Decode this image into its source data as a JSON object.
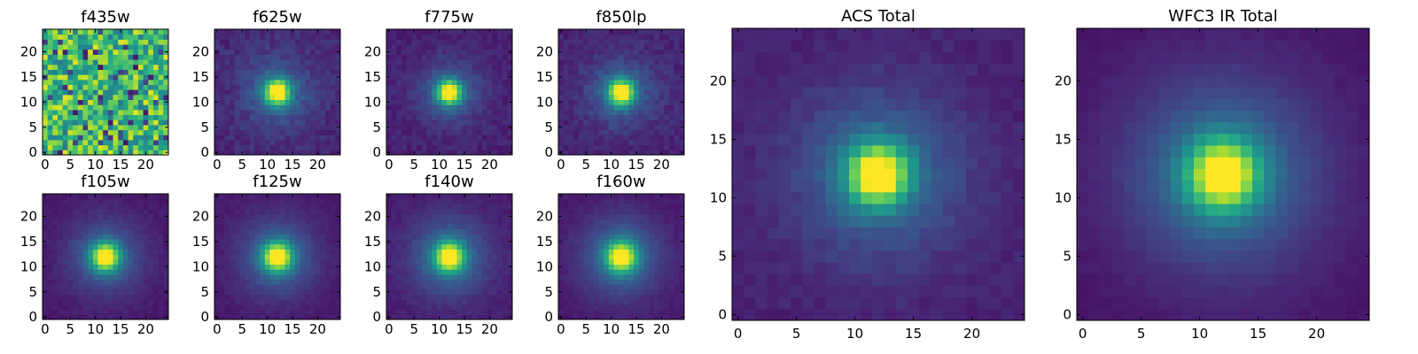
{
  "figure": {
    "background": "#ffffff",
    "colormap": "viridis"
  },
  "chart_data": [
    {
      "type": "heatmap",
      "title": "f435w",
      "grid_size": 25,
      "xlim": [
        -0.5,
        24.5
      ],
      "ylim": [
        -0.5,
        24.5
      ],
      "x_ticks": [
        0,
        5,
        10,
        15,
        20
      ],
      "y_ticks": [
        0,
        5,
        10,
        15,
        20
      ],
      "grid": false,
      "pattern": "noise",
      "noise_mean": 0.68,
      "noise_spread": 0.28,
      "seed": 7
    },
    {
      "type": "heatmap",
      "title": "f625w",
      "grid_size": 25,
      "xlim": [
        -0.5,
        24.5
      ],
      "ylim": [
        -0.5,
        24.5
      ],
      "x_ticks": [
        0,
        5,
        10,
        15,
        20
      ],
      "y_ticks": [
        0,
        5,
        10,
        15,
        20
      ],
      "grid": false,
      "pattern": "source",
      "center": [
        12,
        12
      ],
      "core_sigma": 1.7,
      "halo_sigma": 4.8,
      "halo_fraction": 0.22,
      "background_level": 0.1,
      "noise": 0.045,
      "seed": 11
    },
    {
      "type": "heatmap",
      "title": "f775w",
      "grid_size": 25,
      "xlim": [
        -0.5,
        24.5
      ],
      "ylim": [
        -0.5,
        24.5
      ],
      "x_ticks": [
        0,
        5,
        10,
        15,
        20
      ],
      "y_ticks": [
        0,
        5,
        10,
        15,
        20
      ],
      "grid": false,
      "pattern": "source",
      "center": [
        12,
        12
      ],
      "core_sigma": 1.65,
      "halo_sigma": 4.6,
      "halo_fraction": 0.2,
      "background_level": 0.08,
      "noise": 0.035,
      "seed": 13
    },
    {
      "type": "heatmap",
      "title": "f850lp",
      "grid_size": 25,
      "xlim": [
        -0.5,
        24.5
      ],
      "ylim": [
        -0.5,
        24.5
      ],
      "x_ticks": [
        0,
        5,
        10,
        15,
        20
      ],
      "y_ticks": [
        0,
        5,
        10,
        15,
        20
      ],
      "grid": false,
      "pattern": "source",
      "center": [
        12,
        12
      ],
      "core_sigma": 1.7,
      "halo_sigma": 4.8,
      "halo_fraction": 0.22,
      "background_level": 0.09,
      "noise": 0.04,
      "seed": 17
    },
    {
      "type": "heatmap",
      "title": "f105w",
      "grid_size": 25,
      "xlim": [
        -0.5,
        24.5
      ],
      "ylim": [
        -0.5,
        24.5
      ],
      "x_ticks": [
        0,
        5,
        10,
        15,
        20
      ],
      "y_ticks": [
        0,
        5,
        10,
        15,
        20
      ],
      "grid": false,
      "pattern": "source",
      "center": [
        12,
        12
      ],
      "core_sigma": 1.9,
      "halo_sigma": 5.2,
      "halo_fraction": 0.25,
      "background_level": 0.06,
      "noise": 0.02,
      "seed": 19
    },
    {
      "type": "heatmap",
      "title": "f125w",
      "grid_size": 25,
      "xlim": [
        -0.5,
        24.5
      ],
      "ylim": [
        -0.5,
        24.5
      ],
      "x_ticks": [
        0,
        5,
        10,
        15,
        20
      ],
      "y_ticks": [
        0,
        5,
        10,
        15,
        20
      ],
      "grid": false,
      "pattern": "source",
      "center": [
        12,
        12
      ],
      "core_sigma": 2.0,
      "halo_sigma": 5.4,
      "halo_fraction": 0.26,
      "background_level": 0.06,
      "noise": 0.018,
      "seed": 23
    },
    {
      "type": "heatmap",
      "title": "f140w",
      "grid_size": 25,
      "xlim": [
        -0.5,
        24.5
      ],
      "ylim": [
        -0.5,
        24.5
      ],
      "x_ticks": [
        0,
        5,
        10,
        15,
        20
      ],
      "y_ticks": [
        0,
        5,
        10,
        15,
        20
      ],
      "grid": false,
      "pattern": "source",
      "center": [
        12,
        12
      ],
      "core_sigma": 2.0,
      "halo_sigma": 5.5,
      "halo_fraction": 0.27,
      "background_level": 0.07,
      "noise": 0.022,
      "seed": 29
    },
    {
      "type": "heatmap",
      "title": "f160w",
      "grid_size": 25,
      "xlim": [
        -0.5,
        24.5
      ],
      "ylim": [
        -0.5,
        24.5
      ],
      "x_ticks": [
        0,
        5,
        10,
        15,
        20
      ],
      "y_ticks": [
        0,
        5,
        10,
        15,
        20
      ],
      "grid": false,
      "pattern": "source",
      "center": [
        12,
        12
      ],
      "core_sigma": 2.05,
      "halo_sigma": 5.6,
      "halo_fraction": 0.28,
      "background_level": 0.06,
      "noise": 0.018,
      "seed": 31
    },
    {
      "type": "heatmap",
      "title": "ACS Total",
      "grid_size": 25,
      "xlim": [
        -0.5,
        24.5
      ],
      "ylim": [
        -0.5,
        24.5
      ],
      "x_ticks": [
        0,
        5,
        10,
        15,
        20
      ],
      "y_ticks": [
        0,
        5,
        10,
        15,
        20
      ],
      "grid": false,
      "pattern": "source",
      "center": [
        12,
        12
      ],
      "core_sigma": 1.8,
      "halo_sigma": 5.2,
      "halo_fraction": 0.24,
      "background_level": 0.08,
      "noise": 0.025,
      "seed": 37
    },
    {
      "type": "heatmap",
      "title": "WFC3 IR Total",
      "grid_size": 25,
      "xlim": [
        -0.5,
        24.5
      ],
      "ylim": [
        -0.5,
        24.5
      ],
      "x_ticks": [
        0,
        5,
        10,
        15,
        20
      ],
      "y_ticks": [
        0,
        5,
        10,
        15,
        20
      ],
      "grid": false,
      "pattern": "source",
      "center": [
        12,
        12
      ],
      "core_sigma": 2.1,
      "halo_sigma": 5.8,
      "halo_fraction": 0.3,
      "background_level": 0.05,
      "noise": 0.01,
      "seed": 41
    }
  ]
}
